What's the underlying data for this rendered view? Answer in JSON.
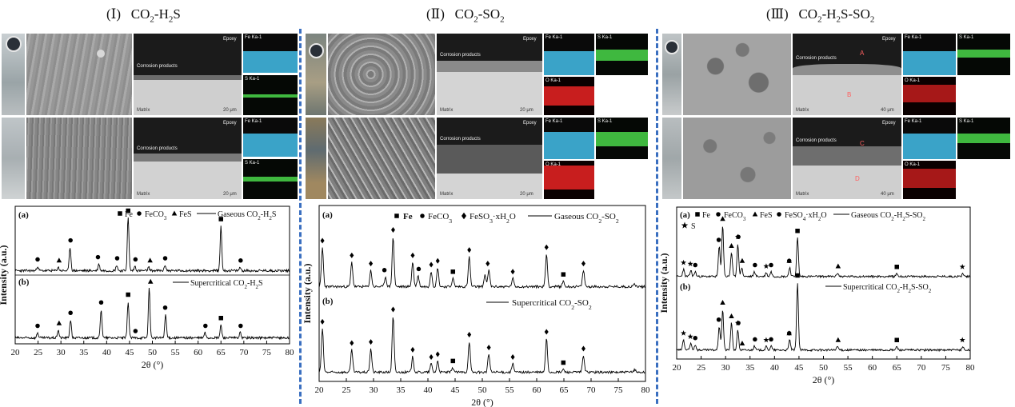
{
  "panels": [
    {
      "title": "(Ⅰ)   CO2-H2S",
      "micro": {
        "epoxy": "Epoxy",
        "corrosion_products": "Corrosion products",
        "matrix": "Matrix",
        "fe_map": "Fe Ka-1",
        "s_map": "S Ka-1",
        "scale_a": "20 μm",
        "scale_b": "20 μm"
      },
      "legend": {
        "fe": "Fe",
        "feco3": "FeCO3",
        "fes": "FeS",
        "line_a": "Gaseous CO2-H2S",
        "line_b": "Supercritical CO2-H2S"
      },
      "curve_a_label": "(a)",
      "curve_b_label": "(b)"
    },
    {
      "title": "(Ⅱ)   CO2-SO2",
      "micro": {
        "epoxy": "Epoxy",
        "corrosion_products": "Corrosion products",
        "matrix": "Matrix",
        "fe_map": "Fe Ka-1",
        "s_map": "S Ka-1",
        "o_map": "O Ka-1",
        "scale_a": "20 μm",
        "scale_b": "20 μm"
      },
      "legend": {
        "fe": "Fe",
        "feco3": "FeCO3",
        "feso3": "FeSO3·xH2O",
        "line_a": "Gaseous CO2-SO2",
        "line_b": "Supercritical CO2-SO2"
      },
      "curve_a_label": "(a)",
      "curve_b_label": "(b)"
    },
    {
      "title": "(Ⅲ)   CO2-H2S-SO2",
      "micro": {
        "epoxy": "Epoxy",
        "corrosion_products": "Corrosion products",
        "matrix": "Matrix",
        "fe_map": "Fe Ka-1",
        "s_map": "S Ka-1",
        "o_map": "O Ka-1",
        "point_a": "A",
        "point_b": "B",
        "point_c": "C",
        "point_d": "D",
        "scale_a": "40 μm",
        "scale_b": "40 μm"
      },
      "legend": {
        "fe": "Fe",
        "feco3": "FeCO3",
        "fes": "FeS",
        "feso4": "FeSO4·xH2O",
        "s": "S",
        "line_a": "Gaseous CO2-H2S-SO2",
        "line_b": "Supercritical CO2-H2S-SO2"
      },
      "curve_a_label": "(a)",
      "curve_b_label": "(b)"
    }
  ],
  "chart_data": [
    {
      "type": "line",
      "xlabel": "2θ (°)",
      "ylabel": "Intensity (a.u.)",
      "xlim": [
        20,
        80
      ],
      "xticks": [
        20,
        25,
        30,
        35,
        40,
        45,
        50,
        55,
        60,
        65,
        70,
        75,
        80
      ],
      "series": [
        {
          "name": "Gaseous CO2-H2S",
          "peaks": [
            [
              24.9,
              0.08
            ],
            [
              29.4,
              0.06
            ],
            [
              32.0,
              0.42
            ],
            [
              38.3,
              0.12
            ],
            [
              42.2,
              0.1
            ],
            [
              44.7,
              0.95
            ],
            [
              46.2,
              0.08
            ],
            [
              49.2,
              0.06
            ],
            [
              52.8,
              0.1
            ],
            [
              65.0,
              0.8
            ],
            [
              69.2,
              0.06
            ]
          ]
        },
        {
          "name": "Supercritical CO2-H2S",
          "peaks": [
            [
              24.9,
              0.1
            ],
            [
              29.4,
              0.15
            ],
            [
              32.1,
              0.35
            ],
            [
              38.8,
              0.55
            ],
            [
              44.7,
              0.7
            ],
            [
              49.3,
              0.95
            ],
            [
              52.9,
              0.45
            ],
            [
              61.5,
              0.1
            ],
            [
              65.0,
              0.25
            ],
            [
              69.2,
              0.1
            ]
          ]
        }
      ],
      "markers": {
        "a": [
          [
            "circle",
            24.9
          ],
          [
            "triangle",
            29.6
          ],
          [
            "circle",
            32.1
          ],
          [
            "circle",
            38.1
          ],
          [
            "circle",
            42.3
          ],
          [
            "square",
            44.7
          ],
          [
            "circle",
            46.3
          ],
          [
            "triangle",
            49.5
          ],
          [
            "circle",
            52.8
          ],
          [
            "square",
            65.0
          ],
          [
            "circle",
            69.3
          ]
        ],
        "b": [
          [
            "circle",
            24.9
          ],
          [
            "triangle",
            29.6
          ],
          [
            "circle",
            32.1
          ],
          [
            "circle",
            38.8
          ],
          [
            "square",
            44.7
          ],
          [
            "circle",
            46.3
          ],
          [
            "triangle",
            49.6
          ],
          [
            "circle",
            52.8
          ],
          [
            "circle",
            61.6
          ],
          [
            "square",
            65.0
          ],
          [
            "circle",
            69.3
          ]
        ]
      }
    },
    {
      "type": "line",
      "xlabel": "2θ (°)",
      "ylabel": "Intensity (a.u.)",
      "xlim": [
        20,
        80
      ],
      "xticks": [
        20,
        25,
        30,
        35,
        40,
        45,
        50,
        55,
        60,
        65,
        70,
        75,
        80
      ],
      "series": [
        {
          "name": "Gaseous CO2-SO2",
          "peaks": [
            [
              20.6,
              0.72
            ],
            [
              26.0,
              0.45
            ],
            [
              29.5,
              0.3
            ],
            [
              32.2,
              0.18
            ],
            [
              33.6,
              0.92
            ],
            [
              37.2,
              0.45
            ],
            [
              38.2,
              0.2
            ],
            [
              40.6,
              0.28
            ],
            [
              41.8,
              0.35
            ],
            [
              44.6,
              0.15
            ],
            [
              47.6,
              0.55
            ],
            [
              50.5,
              0.22
            ],
            [
              51.2,
              0.3
            ],
            [
              55.6,
              0.15
            ],
            [
              61.8,
              0.6
            ],
            [
              64.9,
              0.1
            ],
            [
              68.6,
              0.3
            ],
            [
              78.0,
              0.05
            ]
          ]
        },
        {
          "name": "Supercritical CO2-SO2",
          "peaks": [
            [
              20.6,
              0.78
            ],
            [
              26.0,
              0.4
            ],
            [
              29.5,
              0.42
            ],
            [
              33.6,
              1.0
            ],
            [
              37.2,
              0.28
            ],
            [
              40.6,
              0.15
            ],
            [
              41.8,
              0.2
            ],
            [
              44.6,
              0.08
            ],
            [
              47.6,
              0.55
            ],
            [
              51.2,
              0.32
            ],
            [
              55.6,
              0.15
            ],
            [
              61.8,
              0.6
            ],
            [
              64.9,
              0.05
            ],
            [
              68.6,
              0.3
            ],
            [
              78.0,
              0.05
            ]
          ]
        }
      ],
      "markers": {
        "a": [
          [
            "diamond",
            20.6
          ],
          [
            "diamond",
            26.0
          ],
          [
            "diamond",
            29.5
          ],
          [
            "circle",
            32.0
          ],
          [
            "diamond",
            33.6
          ],
          [
            "diamond",
            37.2
          ],
          [
            "circle",
            38.3
          ],
          [
            "diamond",
            40.6
          ],
          [
            "diamond",
            41.8
          ],
          [
            "square",
            44.6
          ],
          [
            "diamond",
            47.6
          ],
          [
            "diamond",
            51.0
          ],
          [
            "diamond",
            55.6
          ],
          [
            "diamond",
            61.8
          ],
          [
            "square",
            64.9
          ],
          [
            "diamond",
            68.6
          ]
        ],
        "b": [
          [
            "diamond",
            20.6
          ],
          [
            "diamond",
            26.0
          ],
          [
            "diamond",
            29.5
          ],
          [
            "diamond",
            33.6
          ],
          [
            "diamond",
            37.2
          ],
          [
            "diamond",
            40.6
          ],
          [
            "diamond",
            41.8
          ],
          [
            "square",
            44.6
          ],
          [
            "diamond",
            47.6
          ],
          [
            "diamond",
            51.2
          ],
          [
            "diamond",
            55.6
          ],
          [
            "diamond",
            61.8
          ],
          [
            "square",
            64.9
          ],
          [
            "diamond",
            68.6
          ]
        ]
      }
    },
    {
      "type": "line",
      "xlabel": "2θ (°)",
      "ylabel": "Intensity (a.u.)",
      "xlim": [
        20,
        80
      ],
      "xticks": [
        20,
        25,
        30,
        35,
        40,
        45,
        50,
        55,
        60,
        65,
        70,
        75,
        80
      ],
      "series": [
        {
          "name": "Gaseous CO2-H2S-SO2",
          "peaks": [
            [
              21.4,
              0.12
            ],
            [
              22.9,
              0.1
            ],
            [
              23.8,
              0.08
            ],
            [
              28.7,
              0.5
            ],
            [
              29.4,
              0.85
            ],
            [
              31.2,
              0.4
            ],
            [
              32.5,
              0.55
            ],
            [
              33.3,
              0.15
            ],
            [
              35.9,
              0.08
            ],
            [
              38.3,
              0.06
            ],
            [
              39.3,
              0.08
            ],
            [
              43.1,
              0.15
            ],
            [
              44.7,
              0.65
            ],
            [
              52.9,
              0.06
            ],
            [
              65.0,
              0.05
            ],
            [
              78.5,
              0.05
            ]
          ]
        },
        {
          "name": "Supercritical CO2-H2S-SO2",
          "peaks": [
            [
              21.4,
              0.15
            ],
            [
              22.9,
              0.1
            ],
            [
              23.8,
              0.08
            ],
            [
              28.7,
              0.35
            ],
            [
              29.4,
              0.6
            ],
            [
              31.2,
              0.4
            ],
            [
              32.5,
              0.3
            ],
            [
              35.9,
              0.06
            ],
            [
              38.3,
              0.05
            ],
            [
              39.3,
              0.06
            ],
            [
              43.1,
              0.15
            ],
            [
              44.7,
              1.0
            ],
            [
              52.9,
              0.05
            ],
            [
              65.0,
              0.05
            ],
            [
              78.5,
              0.05
            ]
          ]
        }
      ],
      "markers": {
        "a": [
          [
            "star",
            21.4
          ],
          [
            "star",
            22.8
          ],
          [
            "circle",
            23.8
          ],
          [
            "circle",
            28.6
          ],
          [
            "triangle",
            29.4
          ],
          [
            "triangle",
            31.2
          ],
          [
            "star",
            32.5
          ],
          [
            "circle",
            32.6
          ],
          [
            "triangle",
            33.4
          ],
          [
            "circle",
            36.0
          ],
          [
            "star",
            38.3
          ],
          [
            "circle",
            39.3
          ],
          [
            "circle",
            43.0
          ],
          [
            "triangle",
            43.0
          ],
          [
            "square",
            44.7
          ],
          [
            "triangle",
            53.0
          ],
          [
            "square",
            65.0
          ],
          [
            "star",
            78.4
          ]
        ],
        "b": [
          [
            "star",
            21.4
          ],
          [
            "star",
            22.8
          ],
          [
            "circle",
            23.8
          ],
          [
            "circle",
            28.6
          ],
          [
            "triangle",
            29.4
          ],
          [
            "triangle",
            31.2
          ],
          [
            "star",
            32.5
          ],
          [
            "circle",
            32.6
          ],
          [
            "triangle",
            33.4
          ],
          [
            "circle",
            36.0
          ],
          [
            "star",
            38.3
          ],
          [
            "circle",
            39.3
          ],
          [
            "circle",
            43.0
          ],
          [
            "triangle",
            43.0
          ],
          [
            "square",
            44.7
          ],
          [
            "triangle",
            53.0
          ],
          [
            "square",
            65.0
          ],
          [
            "star",
            78.4
          ]
        ]
      }
    }
  ]
}
